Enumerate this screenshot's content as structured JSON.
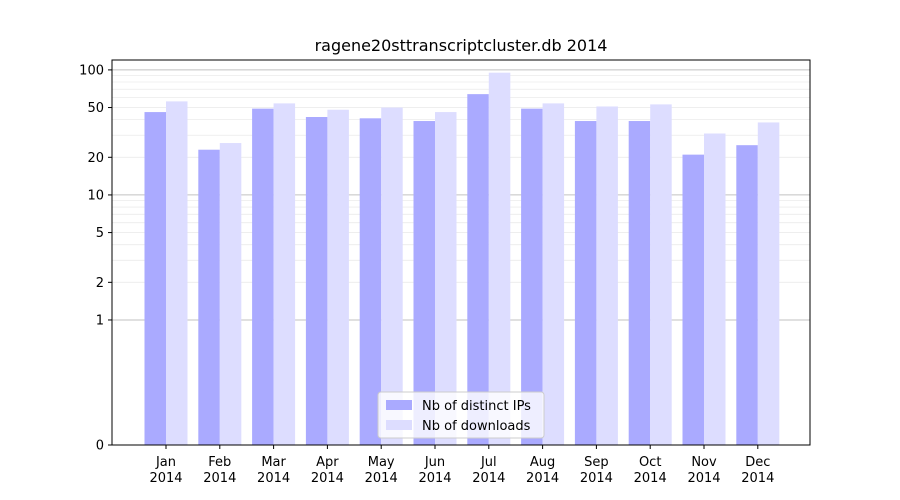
{
  "chart_data": {
    "type": "bar",
    "title": "ragene20sttranscriptcluster.db 2014",
    "xlabel": "",
    "ylabel": "",
    "yscale": "symlog",
    "ylim": [
      0,
      120
    ],
    "yticks": [
      0,
      1,
      2,
      5,
      10,
      20,
      50,
      100
    ],
    "categories": [
      [
        "Jan",
        "2014"
      ],
      [
        "Feb",
        "2014"
      ],
      [
        "Mar",
        "2014"
      ],
      [
        "Apr",
        "2014"
      ],
      [
        "May",
        "2014"
      ],
      [
        "Jun",
        "2014"
      ],
      [
        "Jul",
        "2014"
      ],
      [
        "Aug",
        "2014"
      ],
      [
        "Sep",
        "2014"
      ],
      [
        "Oct",
        "2014"
      ],
      [
        "Nov",
        "2014"
      ],
      [
        "Dec",
        "2014"
      ]
    ],
    "series": [
      {
        "name": "Nb of distinct IPs",
        "color": "#aaaaff",
        "values": [
          46,
          23,
          49,
          42,
          41,
          39,
          64,
          49,
          39,
          39,
          21,
          25
        ]
      },
      {
        "name": "Nb of downloads",
        "color": "#ddddff",
        "values": [
          56,
          26,
          54,
          48,
          50,
          46,
          95,
          54,
          51,
          53,
          31,
          38
        ]
      }
    ],
    "legend_position": "bottom-center",
    "grid": true
  }
}
